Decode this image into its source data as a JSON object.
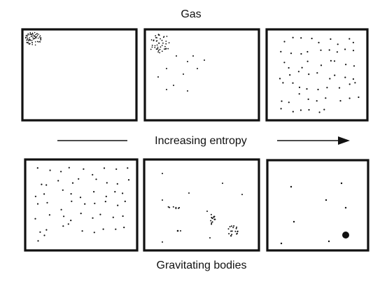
{
  "labels": {
    "top": "Gas",
    "middle": "Increasing entropy",
    "bottom": "Gravitating bodies"
  },
  "colors": {
    "ink": "#111111",
    "background": "#ffffff"
  },
  "rows": [
    {
      "name": "gas",
      "panels": [
        {
          "state": "particles concentrated in top-left corner"
        },
        {
          "state": "particles spreading out from top-left corner"
        },
        {
          "state": "particles evenly spread throughout box"
        }
      ]
    },
    {
      "name": "gravitating-bodies",
      "panels": [
        {
          "state": "particles evenly spread throughout box"
        },
        {
          "state": "particles beginning to clump together"
        },
        {
          "state": "few scattered particles and one dense body"
        }
      ]
    }
  ]
}
